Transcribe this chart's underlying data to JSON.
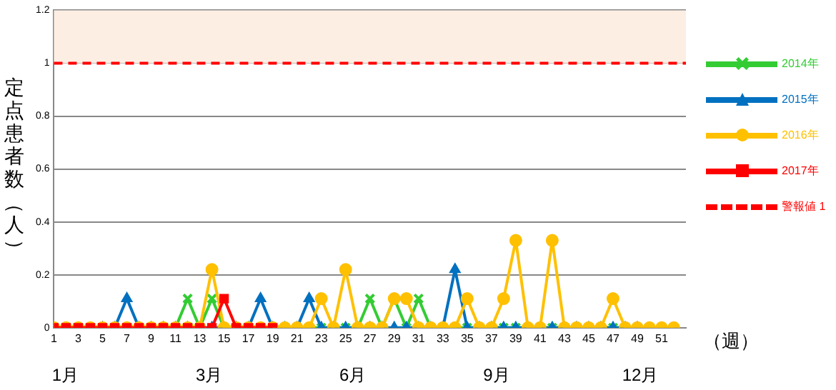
{
  "chart_data": {
    "type": "line",
    "x": [
      1,
      2,
      3,
      4,
      5,
      6,
      7,
      8,
      9,
      10,
      11,
      12,
      13,
      14,
      15,
      16,
      17,
      18,
      19,
      20,
      21,
      22,
      23,
      24,
      25,
      26,
      27,
      28,
      29,
      30,
      31,
      32,
      33,
      34,
      35,
      36,
      37,
      38,
      39,
      40,
      41,
      42,
      43,
      44,
      45,
      46,
      47,
      48,
      49,
      50,
      51,
      52
    ],
    "xlim": [
      1,
      53
    ],
    "xticks": [
      1,
      3,
      5,
      7,
      9,
      11,
      13,
      15,
      17,
      19,
      21,
      23,
      25,
      27,
      29,
      31,
      33,
      35,
      37,
      39,
      41,
      43,
      45,
      47,
      49,
      51
    ],
    "ylim": [
      0,
      1.2
    ],
    "yticks": [
      0,
      0.2,
      0.4,
      0.6,
      0.8,
      1,
      1.2
    ],
    "xlabel": "（週）",
    "ylabel": "定点患者数（人）",
    "series": [
      {
        "name": "2014年",
        "color": "#33cc33",
        "marker": "cross",
        "values": [
          null,
          null,
          null,
          null,
          null,
          null,
          null,
          null,
          null,
          0,
          0,
          0.11,
          0,
          0.11,
          0,
          0,
          0,
          0,
          0,
          0,
          0,
          0,
          0,
          0,
          0,
          0,
          0.11,
          0,
          0.11,
          0,
          0.11,
          0,
          0,
          0,
          0,
          0,
          0,
          0,
          0,
          0,
          0,
          0,
          0,
          0,
          0,
          0,
          0,
          0,
          0,
          null,
          null,
          null
        ]
      },
      {
        "name": "2015年",
        "color": "#0070c0",
        "marker": "triangle",
        "values": [
          null,
          null,
          null,
          null,
          0,
          0,
          0.11,
          0,
          0,
          0,
          0,
          0,
          0,
          0,
          0,
          0,
          0,
          0.11,
          0,
          0,
          0,
          0.11,
          0,
          0,
          0,
          0,
          0,
          0,
          0,
          0,
          0,
          0,
          0,
          0.22,
          0,
          0,
          0,
          0,
          0,
          0,
          0,
          0,
          0,
          0,
          0,
          0,
          0,
          0,
          0,
          null,
          null,
          null
        ]
      },
      {
        "name": "2016年",
        "color": "#ffc000",
        "marker": "circle",
        "values": [
          0,
          0,
          0,
          0,
          0,
          0,
          0,
          0,
          0,
          0,
          0,
          0,
          0,
          0.22,
          0,
          0,
          0,
          0,
          0,
          0,
          0,
          0,
          0.11,
          0,
          0.22,
          0,
          0,
          0,
          0.11,
          0.11,
          0,
          0,
          0,
          0,
          0.11,
          0,
          0,
          0.11,
          0.33,
          0,
          0,
          0.33,
          0,
          0,
          0,
          0,
          0.11,
          0,
          0,
          0,
          0,
          0
        ]
      },
      {
        "name": "2017年",
        "color": "#ff0000",
        "marker": "square",
        "values": [
          0,
          0,
          0,
          0,
          0,
          0,
          0,
          0,
          0,
          0,
          0,
          0,
          0,
          0,
          0.11,
          0,
          0,
          0,
          0,
          null,
          null,
          null,
          null,
          null,
          null,
          null,
          null,
          null,
          null,
          null,
          null,
          null,
          null,
          null,
          null,
          null,
          null,
          null,
          null,
          null,
          null,
          null,
          null,
          null,
          null,
          null,
          null,
          null,
          null,
          null,
          null,
          null
        ]
      }
    ],
    "ref_lines": [
      {
        "axis": "y",
        "value": 1,
        "label": "警報値 1",
        "color": "#ff0000",
        "line_style": "dashed"
      }
    ],
    "bands": [
      {
        "axis": "y",
        "from": 1,
        "to": 1.2,
        "color": "#fdeee4"
      }
    ],
    "annotations": [
      "1月",
      "3月",
      "6月",
      "9月",
      "12月"
    ],
    "grid": "y",
    "legend": "right"
  }
}
